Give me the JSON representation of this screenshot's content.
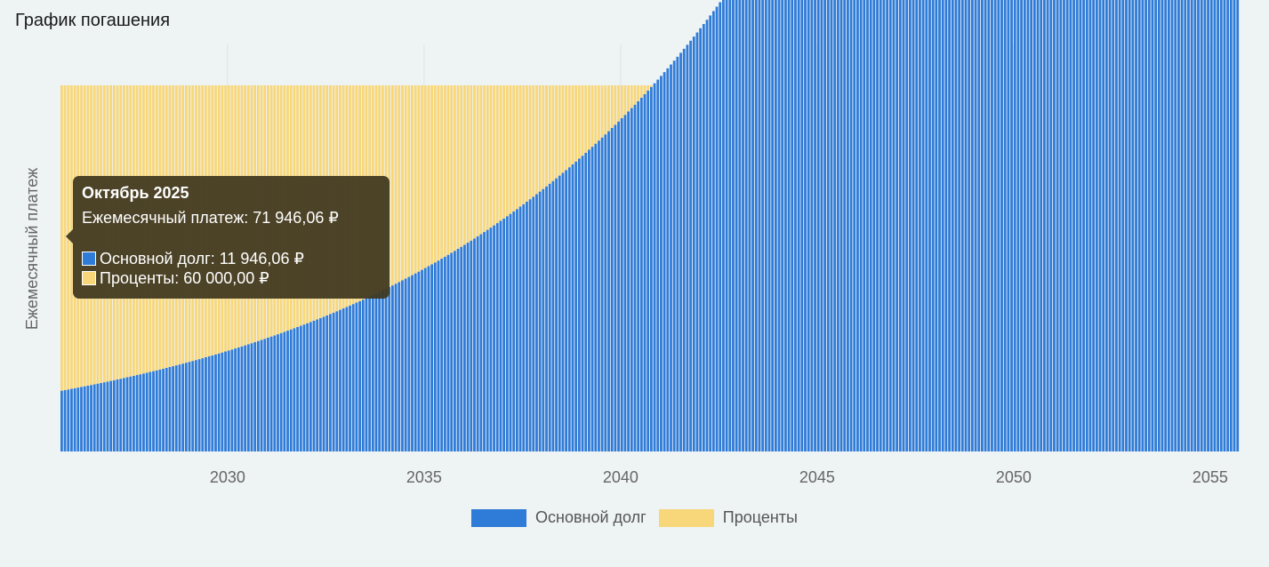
{
  "page": {
    "title": "График погашения"
  },
  "chart_data": {
    "type": "bar",
    "stacked": true,
    "ylabel": "Ежемесячный платеж",
    "xlabel": "",
    "x_start": "2025-10",
    "x_end": "2055-09",
    "x_ticks": [
      "2030",
      "2035",
      "2040",
      "2045",
      "2050",
      "2055"
    ],
    "grid": {
      "vertical": true,
      "horizontal": false
    },
    "legend_position": "bottom",
    "monthly_payment": 71946.06,
    "principal_first": 11946.06,
    "principal_last": 71232.73,
    "monthly_rate": 0.01,
    "months": 360,
    "series": [
      {
        "name": "Основной долг",
        "color": "#2f7bd8"
      },
      {
        "name": "Проценты",
        "color": "#f8d77a"
      }
    ]
  },
  "tooltip": {
    "title": "Октябрь 2025",
    "payment_line": "Ежемесячный платеж: 71 946,06 ₽",
    "principal_line": "Основной долг: 11 946,06 ₽",
    "interest_line": "Проценты: 60 000,00 ₽"
  },
  "legend": {
    "principal": "Основной долг",
    "interest": "Проценты"
  }
}
